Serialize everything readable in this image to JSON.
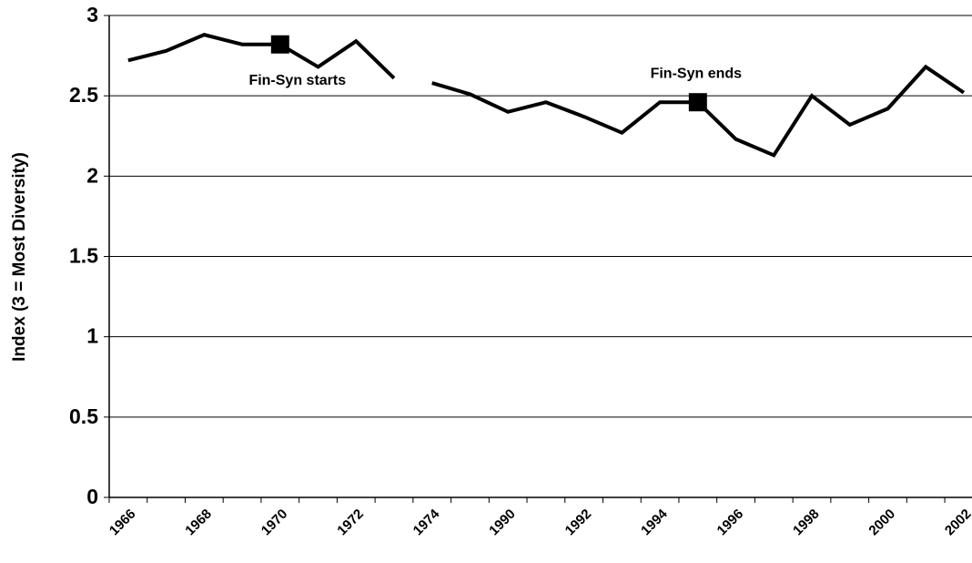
{
  "chart_data": {
    "type": "line",
    "y_label": "Index (3 = Most Diversity)",
    "categories": [
      "1966",
      null,
      "1968",
      null,
      "1970",
      null,
      "1972",
      null,
      "1974",
      null,
      "1990",
      null,
      "1992",
      null,
      "1994",
      null,
      "1996",
      null,
      "1998",
      null,
      "2000",
      null,
      "2002"
    ],
    "series": [
      {
        "color": "#000000",
        "values": [
          2.72,
          2.78,
          2.88,
          2.82,
          2.82,
          2.68,
          2.84,
          2.61,
          null,
          null,
          null,
          null,
          null,
          null,
          null,
          null,
          null,
          null,
          null,
          null,
          null,
          null,
          null
        ]
      },
      {
        "color": "#000000",
        "values": [
          null,
          null,
          null,
          null,
          null,
          null,
          null,
          null,
          2.58,
          2.51,
          2.4,
          2.46,
          2.37,
          2.27,
          2.46,
          2.46,
          2.23,
          2.13,
          2.5,
          2.32,
          2.42,
          2.68,
          2.52
        ]
      }
    ],
    "annotations": [
      {
        "text": "Fin-Syn starts",
        "series": 0,
        "index": 4,
        "position": "below"
      },
      {
        "text": "Fin-Syn ends",
        "series": 1,
        "index": 15,
        "position": "above"
      }
    ],
    "ylim": [
      0,
      3
    ],
    "yticks": [
      0,
      0.5,
      1,
      1.5,
      2,
      2.5,
      3
    ],
    "grid": true
  }
}
